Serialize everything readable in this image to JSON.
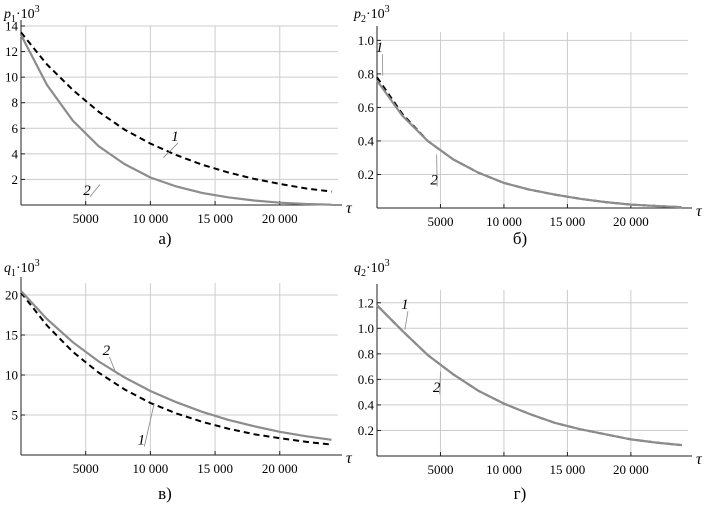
{
  "chart_data": [
    {
      "id": "a",
      "type": "line",
      "caption": "а)",
      "ylabel_base": "p",
      "ylabel_sub": "1",
      "ylabel_mult": "·10",
      "ylabel_exp": "3",
      "xlabel": "τ",
      "xlim": [
        0,
        24500
      ],
      "ylim": [
        0,
        14
      ],
      "xticks": [
        5000,
        10000,
        15000,
        20000
      ],
      "xtick_labels": [
        "5000",
        "10 000",
        "15 000",
        "20 000"
      ],
      "yticks": [
        2,
        4,
        6,
        8,
        10,
        12,
        14
      ],
      "ytick_labels": [
        "2",
        "4",
        "6",
        "8",
        "10",
        "12",
        "14"
      ],
      "series": [
        {
          "name": "1",
          "style": "dashed",
          "color": "#000000",
          "x": [
            0,
            2000,
            4000,
            6000,
            8000,
            10000,
            12000,
            14000,
            16000,
            18000,
            20000,
            22000,
            24000
          ],
          "y": [
            13.5,
            11.0,
            9.0,
            7.3,
            5.9,
            4.8,
            3.9,
            3.15,
            2.55,
            2.05,
            1.65,
            1.3,
            1.05
          ]
        },
        {
          "name": "2",
          "style": "solid",
          "color": "#8c8c8c",
          "x": [
            0,
            2000,
            4000,
            6000,
            8000,
            10000,
            12000,
            14000,
            16000,
            18000,
            20000,
            22000,
            24000
          ],
          "y": [
            13.3,
            9.4,
            6.6,
            4.6,
            3.2,
            2.15,
            1.45,
            0.95,
            0.6,
            0.35,
            0.18,
            0.08,
            0.02
          ]
        }
      ],
      "curve_tags": [
        {
          "text": "1",
          "x": 11900,
          "y": 5.0,
          "leader_x": 11000,
          "leader_y": 3.7
        },
        {
          "text": "2",
          "x": 5100,
          "y": 0.8,
          "leader_x": 6100,
          "leader_y": 1.6
        }
      ]
    },
    {
      "id": "b",
      "type": "line",
      "caption": "б)",
      "ylabel_base": "p",
      "ylabel_sub": "2",
      "ylabel_mult": "·10",
      "ylabel_exp": "3",
      "xlabel": "τ",
      "xlim": [
        0,
        24500
      ],
      "ylim": [
        0,
        1.05
      ],
      "xticks": [
        5000,
        10000,
        15000,
        20000
      ],
      "xtick_labels": [
        "5000",
        "10 000",
        "15 000",
        "20 000"
      ],
      "yticks": [
        0.2,
        0.4,
        0.6,
        0.8,
        1.0
      ],
      "ytick_labels": [
        "0.2",
        "0.4",
        "0.6",
        "0.8",
        "1.0"
      ],
      "series": [
        {
          "name": "1",
          "style": "dashed",
          "color": "#000000",
          "x": [
            0,
            2000,
            4000,
            6000,
            8000,
            10000,
            12000,
            14000,
            16000,
            18000,
            20000,
            22000,
            24000
          ],
          "y": [
            0.78,
            0.56,
            0.4,
            0.29,
            0.21,
            0.15,
            0.11,
            0.08,
            0.055,
            0.035,
            0.02,
            0.012,
            0.005
          ]
        },
        {
          "name": "2",
          "style": "solid",
          "color": "#8c8c8c",
          "x": [
            0,
            2000,
            4000,
            6000,
            8000,
            10000,
            12000,
            14000,
            16000,
            18000,
            20000,
            22000,
            24000
          ],
          "y": [
            0.76,
            0.55,
            0.4,
            0.29,
            0.21,
            0.15,
            0.11,
            0.08,
            0.055,
            0.035,
            0.02,
            0.012,
            0.005
          ]
        }
      ],
      "curve_tags": [
        {
          "text": "1",
          "x": 200,
          "y": 0.93,
          "leader_x": 450,
          "leader_y": 0.79
        },
        {
          "text": "2",
          "x": 4500,
          "y": 0.14,
          "leader_x": 4700,
          "leader_y": 0.32
        }
      ]
    },
    {
      "id": "c",
      "type": "line",
      "caption": "в)",
      "ylabel_base": "q",
      "ylabel_sub": "1",
      "ylabel_mult": "·10",
      "ylabel_exp": "3",
      "xlabel": "τ",
      "xlim": [
        0,
        24500
      ],
      "ylim": [
        0,
        21.5
      ],
      "xticks": [
        5000,
        10000,
        15000,
        20000
      ],
      "xtick_labels": [
        "5000",
        "10 000",
        "15 000",
        "20 000"
      ],
      "yticks": [
        5,
        10,
        15,
        20
      ],
      "ytick_labels": [
        "5",
        "10",
        "15",
        "20"
      ],
      "series": [
        {
          "name": "1",
          "style": "dashed",
          "color": "#000000",
          "x": [
            0,
            2000,
            4000,
            6000,
            8000,
            10000,
            12000,
            14000,
            16000,
            18000,
            20000,
            22000,
            24000
          ],
          "y": [
            20.3,
            16.2,
            12.9,
            10.3,
            8.2,
            6.5,
            5.2,
            4.15,
            3.3,
            2.6,
            2.1,
            1.65,
            1.3
          ]
        },
        {
          "name": "2",
          "style": "solid",
          "color": "#8c8c8c",
          "x": [
            0,
            2000,
            4000,
            6000,
            8000,
            10000,
            12000,
            14000,
            16000,
            18000,
            20000,
            22000,
            24000
          ],
          "y": [
            20.5,
            17.0,
            14.1,
            11.7,
            9.7,
            8.0,
            6.6,
            5.4,
            4.4,
            3.6,
            2.9,
            2.35,
            1.9
          ]
        }
      ],
      "curve_tags": [
        {
          "text": "1",
          "x": 9300,
          "y": 1.3,
          "leader_x": 10300,
          "leader_y": 6.5
        },
        {
          "text": "2",
          "x": 6600,
          "y": 12.5,
          "leader_x": 7300,
          "leader_y": 10.4
        }
      ]
    },
    {
      "id": "d",
      "type": "line",
      "caption": "г)",
      "ylabel_base": "q",
      "ylabel_sub": "2",
      "ylabel_mult": "·10",
      "ylabel_exp": "3",
      "xlabel": "τ",
      "xlim": [
        0,
        24500
      ],
      "ylim": [
        0,
        1.3
      ],
      "xticks": [
        5000,
        10000,
        15000,
        20000
      ],
      "xtick_labels": [
        "5000",
        "10 000",
        "15 000",
        "20 000"
      ],
      "yticks": [
        0.2,
        0.4,
        0.6,
        0.8,
        1.0,
        1.2
      ],
      "ytick_labels": [
        "0.2",
        "0.4",
        "0.6",
        "0.8",
        "1.0",
        "1.2"
      ],
      "series": [
        {
          "name": "1",
          "style": "dashed",
          "color": "#000000",
          "x": [
            0,
            2000,
            4000,
            6000,
            8000,
            10000,
            12000,
            14000,
            16000,
            18000,
            20000,
            22000,
            24000
          ],
          "y": [
            1.18,
            0.98,
            0.79,
            0.64,
            0.51,
            0.41,
            0.33,
            0.26,
            0.21,
            0.17,
            0.13,
            0.105,
            0.085
          ]
        },
        {
          "name": "2",
          "style": "solid",
          "color": "#8c8c8c",
          "x": [
            0,
            2000,
            4000,
            6000,
            8000,
            10000,
            12000,
            14000,
            16000,
            18000,
            20000,
            22000,
            24000
          ],
          "y": [
            1.18,
            0.98,
            0.79,
            0.64,
            0.51,
            0.41,
            0.33,
            0.26,
            0.21,
            0.17,
            0.13,
            0.105,
            0.085
          ]
        }
      ],
      "curve_tags": [
        {
          "text": "1",
          "x": 2200,
          "y": 1.15,
          "leader_x": 2200,
          "leader_y": 0.99
        },
        {
          "text": "2",
          "x": 4700,
          "y": 0.5,
          "leader_x": 5000,
          "leader_y": 0.66
        }
      ]
    }
  ]
}
